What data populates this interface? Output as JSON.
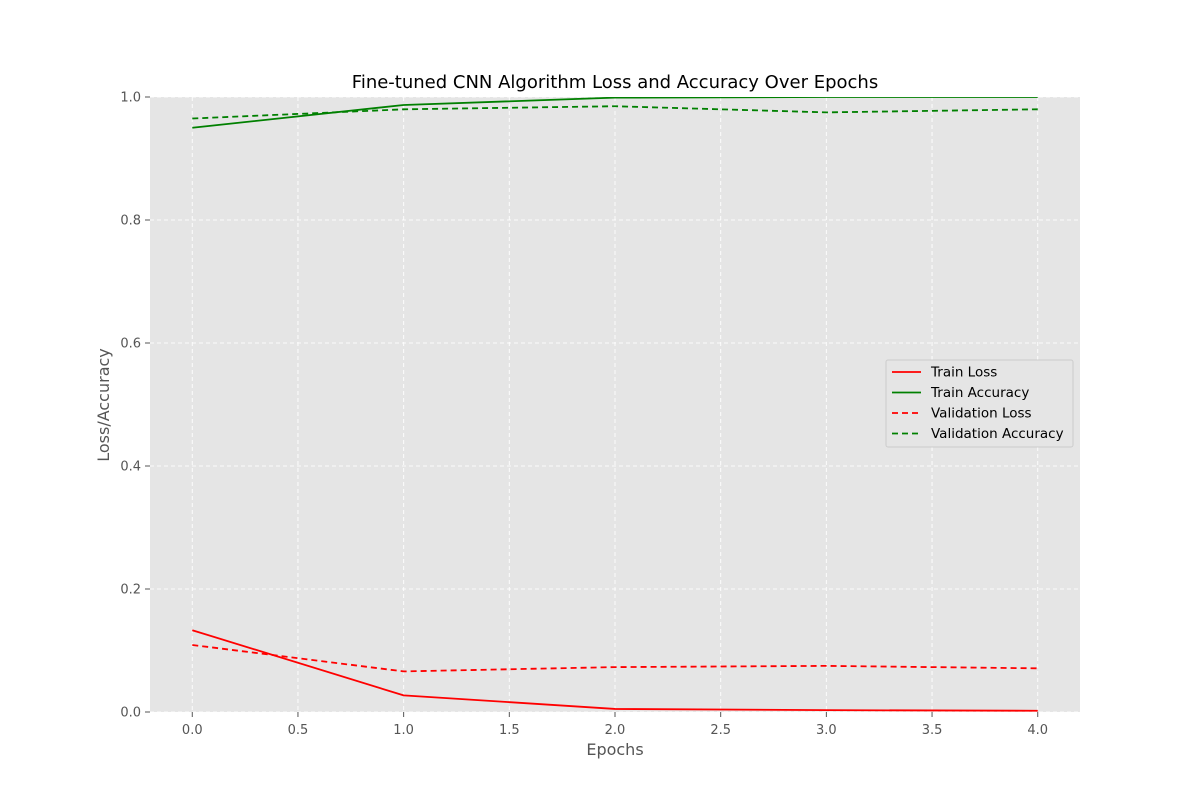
{
  "chart_data": {
    "type": "line",
    "title": "Fine-tuned CNN Algorithm Loss and Accuracy Over Epochs",
    "xlabel": "Epochs",
    "ylabel": "Loss/Accuracy",
    "xlim": [
      -0.2,
      4.2
    ],
    "ylim": [
      0.0,
      1.0
    ],
    "xticks": [
      "0.0",
      "0.5",
      "1.0",
      "1.5",
      "2.0",
      "2.5",
      "3.0",
      "3.5",
      "4.0"
    ],
    "yticks": [
      "0.0",
      "0.2",
      "0.4",
      "0.6",
      "0.8",
      "1.0"
    ],
    "grid": true,
    "legend_position": "center-right",
    "x": [
      0,
      1,
      2,
      3,
      4
    ],
    "series": [
      {
        "name": "Train Loss",
        "values": [
          0.133,
          0.027,
          0.005,
          0.003,
          0.002
        ],
        "color": "#ff0000",
        "style": "solid"
      },
      {
        "name": "Train Accuracy",
        "values": [
          0.95,
          0.987,
          0.999,
          1.0,
          1.0
        ],
        "color": "#008000",
        "style": "solid"
      },
      {
        "name": "Validation Loss",
        "values": [
          0.109,
          0.066,
          0.073,
          0.075,
          0.071
        ],
        "color": "#ff0000",
        "style": "dashed"
      },
      {
        "name": "Validation Accuracy",
        "values": [
          0.965,
          0.98,
          0.985,
          0.975,
          0.98
        ],
        "color": "#008000",
        "style": "dashed"
      }
    ]
  }
}
